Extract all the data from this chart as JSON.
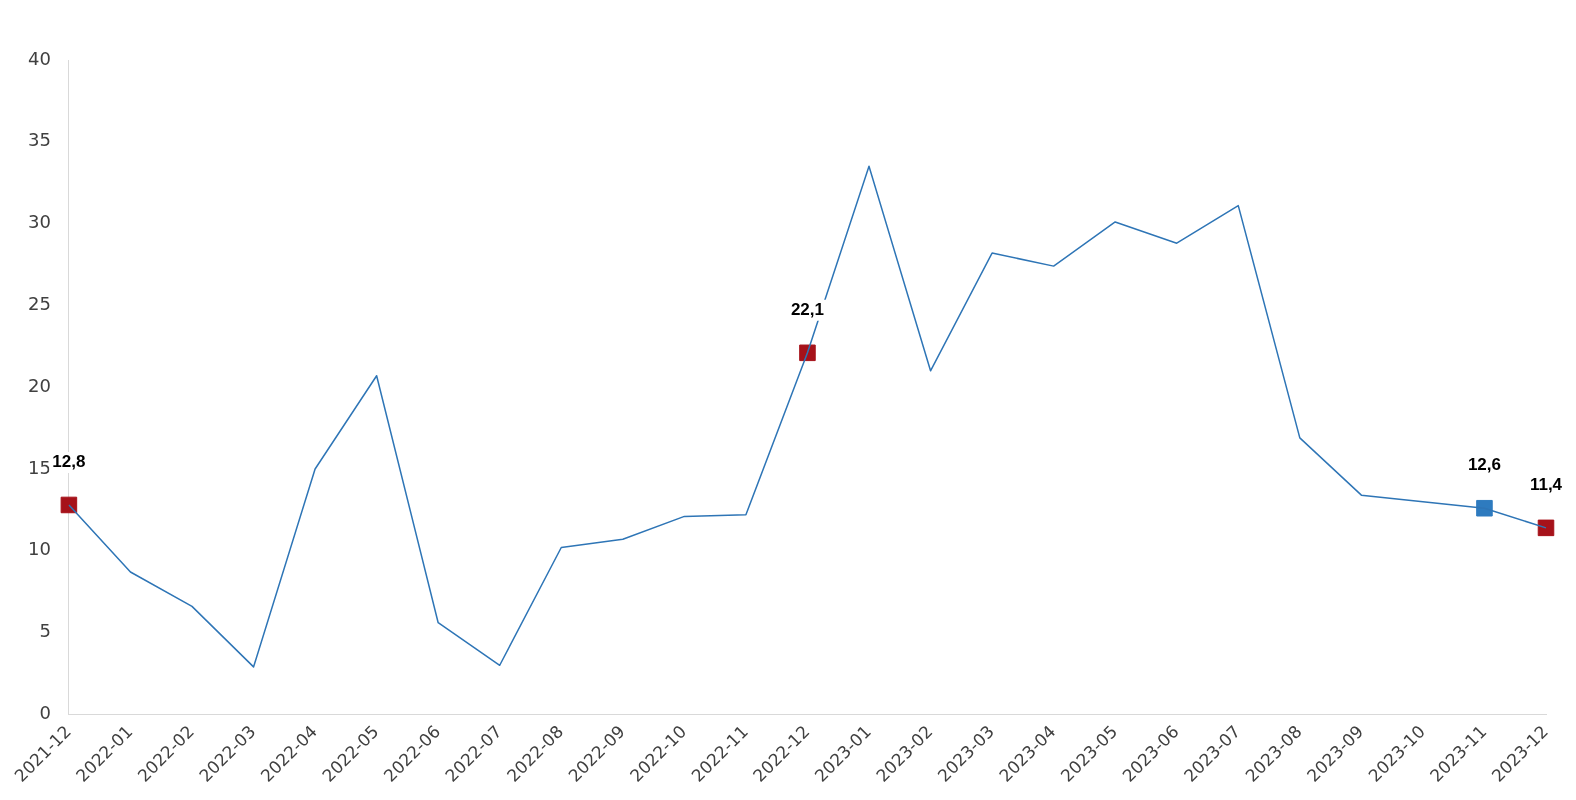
{
  "chart_data": {
    "type": "line",
    "categories": [
      "2021-12",
      "2022-01",
      "2022-02",
      "2022-03",
      "2022-04",
      "2022-05",
      "2022-06",
      "2022-07",
      "2022-08",
      "2022-09",
      "2022-10",
      "2022-11",
      "2022-12",
      "2023-01",
      "2023-02",
      "2023-03",
      "2023-04",
      "2023-05",
      "2023-06",
      "2023-07",
      "2023-08",
      "2023-09",
      "2023-10",
      "2023-11",
      "2023-12"
    ],
    "series": [
      {
        "color": "#2e75b6",
        "values": [
          12.8,
          8.7,
          6.6,
          2.9,
          15.0,
          20.7,
          5.6,
          3.0,
          10.2,
          10.7,
          12.1,
          12.2,
          22.1,
          33.5,
          21.0,
          28.2,
          27.4,
          30.1,
          28.8,
          31.1,
          16.9,
          13.4,
          13.0,
          12.6,
          11.4
        ]
      },
      {
        "type": "scatter",
        "values": [
          12.8,
          null,
          null,
          null,
          null,
          null,
          null,
          null,
          null,
          null,
          null,
          null,
          22.1,
          null,
          null,
          null,
          null,
          null,
          null,
          null,
          null,
          null,
          null,
          12.6,
          11.4
        ],
        "colors": [
          "#a6121a",
          null,
          null,
          null,
          null,
          null,
          null,
          null,
          null,
          null,
          null,
          null,
          "#a6121a",
          null,
          null,
          null,
          null,
          null,
          null,
          null,
          null,
          null,
          null,
          "#2e7bbf",
          "#a6121a"
        ],
        "value_labels": [
          "12,8",
          null,
          null,
          null,
          null,
          null,
          null,
          null,
          null,
          null,
          null,
          null,
          "22,1",
          null,
          null,
          null,
          null,
          null,
          null,
          null,
          null,
          null,
          null,
          "12,6",
          "11,4"
        ],
        "marker": "square"
      }
    ],
    "ylim": [
      0,
      40
    ],
    "yticks": [
      0,
      5,
      10,
      15,
      20,
      25,
      30,
      35,
      40
    ],
    "grid": false,
    "legend": false,
    "marker": "none",
    "line_style": "solid"
  }
}
